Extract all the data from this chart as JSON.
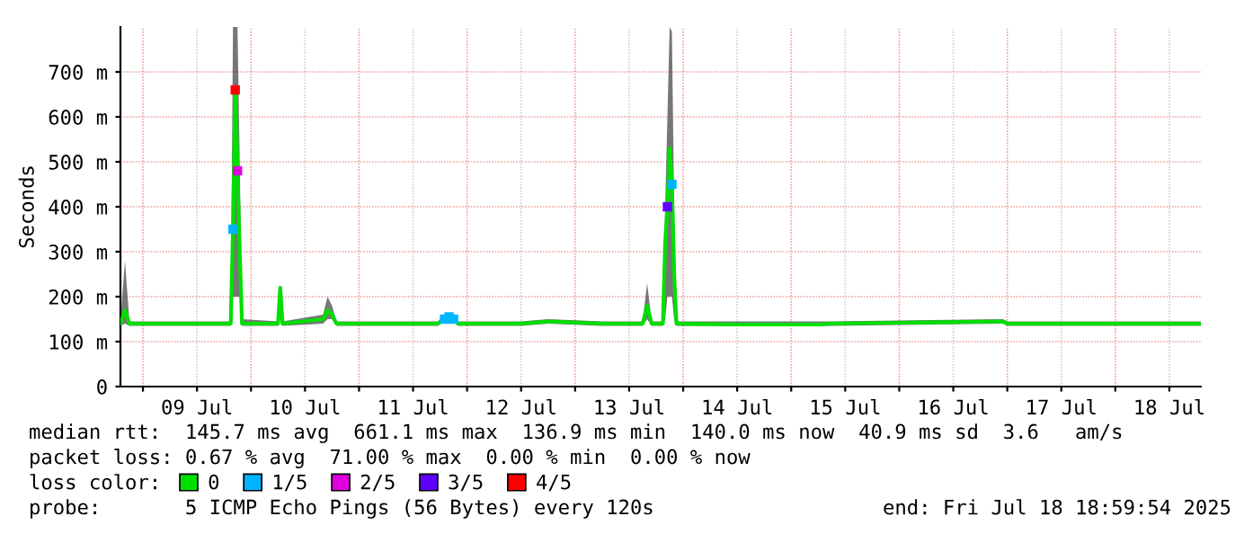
{
  "chart_data": {
    "type": "line",
    "ylabel": "Seconds",
    "legend_title": "loss color:",
    "legend": "bottom",
    "grid": true,
    "xlim": [
      "2025-07-08T19:00",
      "2025-07-18T19:00"
    ],
    "xticks": [
      {
        "value": "2025-07-09T00:00",
        "label": null
      },
      {
        "value": "2025-07-09T12:00",
        "label": "09 Jul"
      },
      {
        "value": "2025-07-10T00:00",
        "label": null
      },
      {
        "value": "2025-07-10T12:00",
        "label": "10 Jul"
      },
      {
        "value": "2025-07-11T00:00",
        "label": null
      },
      {
        "value": "2025-07-11T12:00",
        "label": "11 Jul"
      },
      {
        "value": "2025-07-12T00:00",
        "label": null
      },
      {
        "value": "2025-07-12T12:00",
        "label": "12 Jul"
      },
      {
        "value": "2025-07-13T00:00",
        "label": null
      },
      {
        "value": "2025-07-13T12:00",
        "label": "13 Jul"
      },
      {
        "value": "2025-07-14T00:00",
        "label": null
      },
      {
        "value": "2025-07-14T12:00",
        "label": "14 Jul"
      },
      {
        "value": "2025-07-15T00:00",
        "label": null
      },
      {
        "value": "2025-07-15T12:00",
        "label": "15 Jul"
      },
      {
        "value": "2025-07-16T00:00",
        "label": null
      },
      {
        "value": "2025-07-16T12:00",
        "label": "16 Jul"
      },
      {
        "value": "2025-07-17T00:00",
        "label": null
      },
      {
        "value": "2025-07-17T12:00",
        "label": "17 Jul"
      },
      {
        "value": "2025-07-18T00:00",
        "label": null
      },
      {
        "value": "2025-07-18T12:00",
        "label": "18 Jul"
      }
    ],
    "ylim": [
      0,
      800
    ],
    "yticks": [
      0,
      {
        "value": 100,
        "label": "100 m"
      },
      {
        "value": 200,
        "label": "200 m"
      },
      {
        "value": 300,
        "label": "300 m"
      },
      {
        "value": 400,
        "label": "400 m"
      },
      {
        "value": 500,
        "label": "500 m"
      },
      {
        "value": 600,
        "label": "600 m"
      },
      {
        "value": 700,
        "label": "700 m"
      }
    ],
    "series": [
      {
        "name": "0",
        "color": "#00e000",
        "x": [
          "2025-07-08T19:00",
          "2025-07-08T20:00",
          "2025-07-08T21:00",
          "2025-07-09T06:00",
          "2025-07-09T12:00",
          "2025-07-09T19:30",
          "2025-07-09T20:00",
          "2025-07-09T20:30",
          "2025-07-09T21:00",
          "2025-07-09T21:30",
          "2025-07-09T22:00",
          "2025-07-10T06:00",
          "2025-07-10T06:30",
          "2025-07-10T07:00",
          "2025-07-10T16:00",
          "2025-07-10T17:00",
          "2025-07-10T18:00",
          "2025-07-10T19:00",
          "2025-07-11T17:30",
          "2025-07-11T19:00",
          "2025-07-11T20:00",
          "2025-07-11T21:00",
          "2025-07-11T22:00",
          "2025-07-12T12:00",
          "2025-07-12T18:00",
          "2025-07-13T06:00",
          "2025-07-13T15:00",
          "2025-07-13T16:00",
          "2025-07-13T17:00",
          "2025-07-13T19:30",
          "2025-07-13T20:00",
          "2025-07-13T20:30",
          "2025-07-13T21:00",
          "2025-07-13T21:30",
          "2025-07-13T22:00",
          "2025-07-13T22:30",
          "2025-07-14T12:00",
          "2025-07-15T06:00",
          "2025-07-15T09:00",
          "2025-07-16T23:00",
          "2025-07-17T00:00",
          "2025-07-18T19:00"
        ],
        "values": [
          140,
          170,
          140,
          140,
          140,
          140,
          350,
          660,
          480,
          300,
          140,
          140,
          220,
          140,
          150,
          170,
          160,
          140,
          140,
          150,
          155,
          150,
          140,
          140,
          145,
          140,
          140,
          180,
          140,
          140,
          320,
          400,
          530,
          450,
          250,
          140,
          138,
          138,
          140,
          145,
          140,
          140
        ],
        "lower": [
          135,
          140,
          135,
          135,
          135,
          135,
          200,
          200,
          200,
          200,
          135,
          135,
          150,
          135,
          140,
          150,
          150,
          135,
          135,
          145,
          150,
          145,
          135,
          135,
          140,
          135,
          135,
          150,
          135,
          135,
          150,
          200,
          200,
          200,
          150,
          135,
          135,
          135,
          135,
          140,
          135,
          135
        ],
        "upper": [
          145,
          280,
          145,
          145,
          145,
          145,
          800,
          800,
          800,
          500,
          150,
          145,
          220,
          145,
          160,
          200,
          180,
          145,
          145,
          160,
          160,
          160,
          145,
          145,
          150,
          145,
          145,
          230,
          145,
          145,
          400,
          600,
          800,
          790,
          400,
          145,
          145,
          145,
          145,
          150,
          145,
          145
        ]
      },
      {
        "name": "1/5",
        "color": "#00b4ff",
        "type": "scatter",
        "marker": "square",
        "x": [
          "2025-07-09T20:00",
          "2025-07-11T19:00",
          "2025-07-11T20:00",
          "2025-07-11T21:00",
          "2025-07-13T21:30"
        ],
        "values": [
          350,
          150,
          155,
          150,
          450
        ]
      },
      {
        "name": "2/5",
        "color": "#e000e0",
        "type": "scatter",
        "marker": "square",
        "x": [
          "2025-07-09T21:00"
        ],
        "values": [
          480
        ]
      },
      {
        "name": "3/5",
        "color": "#6000ff",
        "type": "scatter",
        "marker": "square",
        "x": [
          "2025-07-13T20:30"
        ],
        "values": [
          400
        ]
      },
      {
        "name": "4/5",
        "color": "#ff0000",
        "type": "scatter",
        "marker": "square",
        "x": [
          "2025-07-09T20:30"
        ],
        "values": [
          660
        ]
      }
    ],
    "annotations": [
      "median rtt:  145.7 ms avg  661.1 ms max  136.9 ms min  140.0 ms now  40.9 ms sd  3.6   am/s",
      "packet loss: 0.67 % avg  71.00 % max  0.00 % min  0.00 % now",
      "probe:       5 ICMP Echo Pings (56 Bytes) every 120s",
      "end: Fri Jul 18 18:59:54 2025"
    ]
  }
}
